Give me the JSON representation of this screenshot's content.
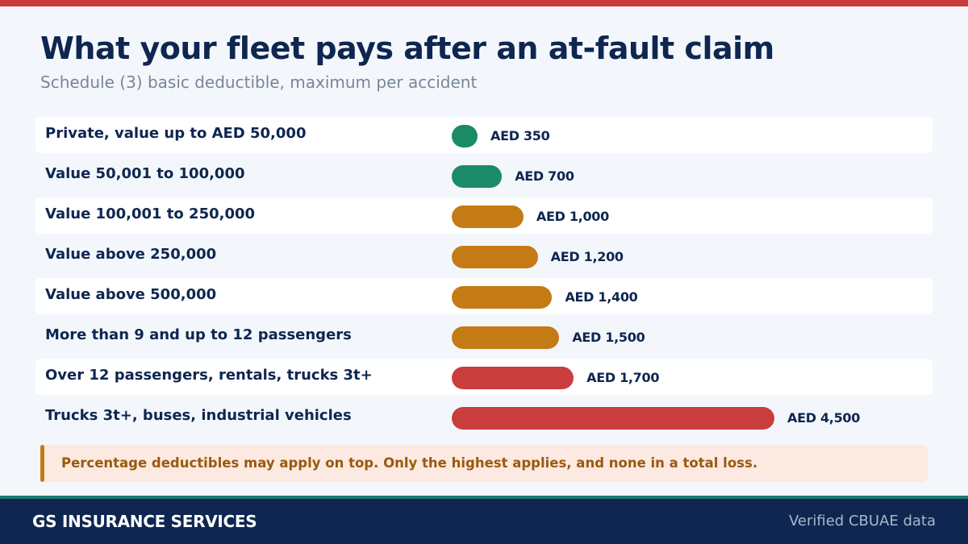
{
  "header": {
    "title": "What your fleet pays after an at-fault claim",
    "subtitle": "Schedule (3) basic deductible, maximum per accident"
  },
  "chart_data": {
    "type": "bar",
    "orientation": "horizontal",
    "title": "What your fleet pays after an at-fault claim",
    "subtitle": "Schedule (3) basic deductible, maximum per accident",
    "categories": [
      "Private, value up to AED 50,000",
      "Value 50,001 to 100,000",
      "Value 100,001 to 250,000",
      "Value above 250,000",
      "Value above 500,000",
      "More than 9 and up to 12 passengers",
      "Over 12 passengers, rentals, trucks 3t+",
      "Trucks 3t+, buses, industrial vehicles"
    ],
    "values": [
      350,
      700,
      1000,
      1200,
      1400,
      1500,
      1700,
      4500
    ],
    "value_labels": [
      "AED 350",
      "AED 700",
      "AED 1,000",
      "AED 1,200",
      "AED 1,400",
      "AED 1,500",
      "AED 1,700",
      "AED 4,500"
    ],
    "bar_colors": [
      "#1b8a66",
      "#1b8a66",
      "#c47b16",
      "#c47b16",
      "#c47b16",
      "#c47b16",
      "#c93d3d",
      "#c93d3d"
    ],
    "xlim": [
      0,
      4500
    ],
    "grid": false,
    "legend": "none"
  },
  "note": {
    "text": "Percentage deductibles may apply on top. Only the highest applies, and none in a total loss."
  },
  "footer": {
    "brand": "GS INSURANCE SERVICES",
    "source": "Verified CBUAE data"
  },
  "colors": {
    "navy": "#0e2650",
    "green": "#1b8a66",
    "amber": "#c47b16",
    "red": "#c93d3d",
    "teal": "#1b7a72",
    "note_bg": "#fbe9e2"
  }
}
